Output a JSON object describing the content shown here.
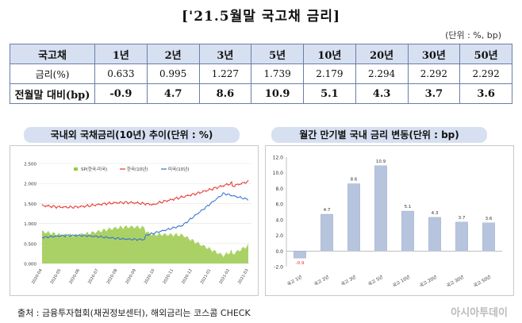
{
  "header": {
    "title": "['21.5월말 국고채 금리]",
    "unit": "(단위 : %, bp)"
  },
  "table": {
    "corner": "국고채",
    "columns": [
      "1년",
      "2년",
      "3년",
      "5년",
      "10년",
      "20년",
      "30년",
      "50년"
    ],
    "rows": [
      {
        "label": "금리(%)",
        "values": [
          "0.633",
          "0.995",
          "1.227",
          "1.739",
          "2.179",
          "2.294",
          "2.292",
          "2.292"
        ]
      },
      {
        "label": "전월말 대비(bp)",
        "values": [
          "-0.9",
          "4.7",
          "8.6",
          "10.9",
          "5.1",
          "4.3",
          "3.7",
          "3.6"
        ]
      }
    ]
  },
  "chart_data": [
    {
      "type": "line",
      "title": "국내외 국채금리(10년) 추이(단위 : %)",
      "yticks": [
        "0.000",
        "0.500",
        "1.000",
        "1.500",
        "2.000",
        "2.500"
      ],
      "ylim": [
        0,
        2.5
      ],
      "xticks": [
        "2020-04",
        "2020-05",
        "2020-06",
        "2020-07",
        "2020-08",
        "2020-09",
        "2020-10",
        "2020-11",
        "2020-12",
        "2021-01",
        "2021-02",
        "2021-03"
      ],
      "legend": [
        "SP(한국-미국)",
        "한국(10년)",
        "미국(10년)"
      ],
      "legend_position": "top",
      "series": [
        {
          "name": "한국(10년)",
          "color": "#e8312b",
          "start": 1.45,
          "end": 2.15
        },
        {
          "name": "미국(10년)",
          "color": "#2f6fd1",
          "start": 0.65,
          "end": 1.62
        },
        {
          "name": "SP(한국-미국)",
          "color": "#9bc94a",
          "start": 0.85,
          "end": 0.5
        }
      ]
    },
    {
      "type": "bar",
      "title": "월간 만기별 국내 금리 변동(단위 : bp)",
      "categories": [
        "국고 1년",
        "국고 2년",
        "국고 3년",
        "국고 5년",
        "국고 10년",
        "국고 20년",
        "국고 30년",
        "국고 50년"
      ],
      "values": [
        -0.9,
        4.7,
        8.6,
        10.9,
        5.1,
        4.3,
        3.7,
        3.6
      ],
      "value_labels": [
        "-0.9",
        "4.7",
        "8.6",
        "10.9",
        "5.1",
        "4.3",
        "3.7",
        "3.6"
      ],
      "yticks": [
        "-2.0",
        "0.0",
        "2.0",
        "4.0",
        "6.0",
        "8.0",
        "10.0",
        "12.0"
      ],
      "ylim": [
        -2,
        12
      ],
      "bar_color": "#b7c4de",
      "negative_label_color": "#e8312b"
    }
  ],
  "footer": {
    "source": "출처 : 금융투자협회(채권정보센터), 해외금리는 코스콤 CHECK",
    "watermark": "아시아투데이"
  }
}
